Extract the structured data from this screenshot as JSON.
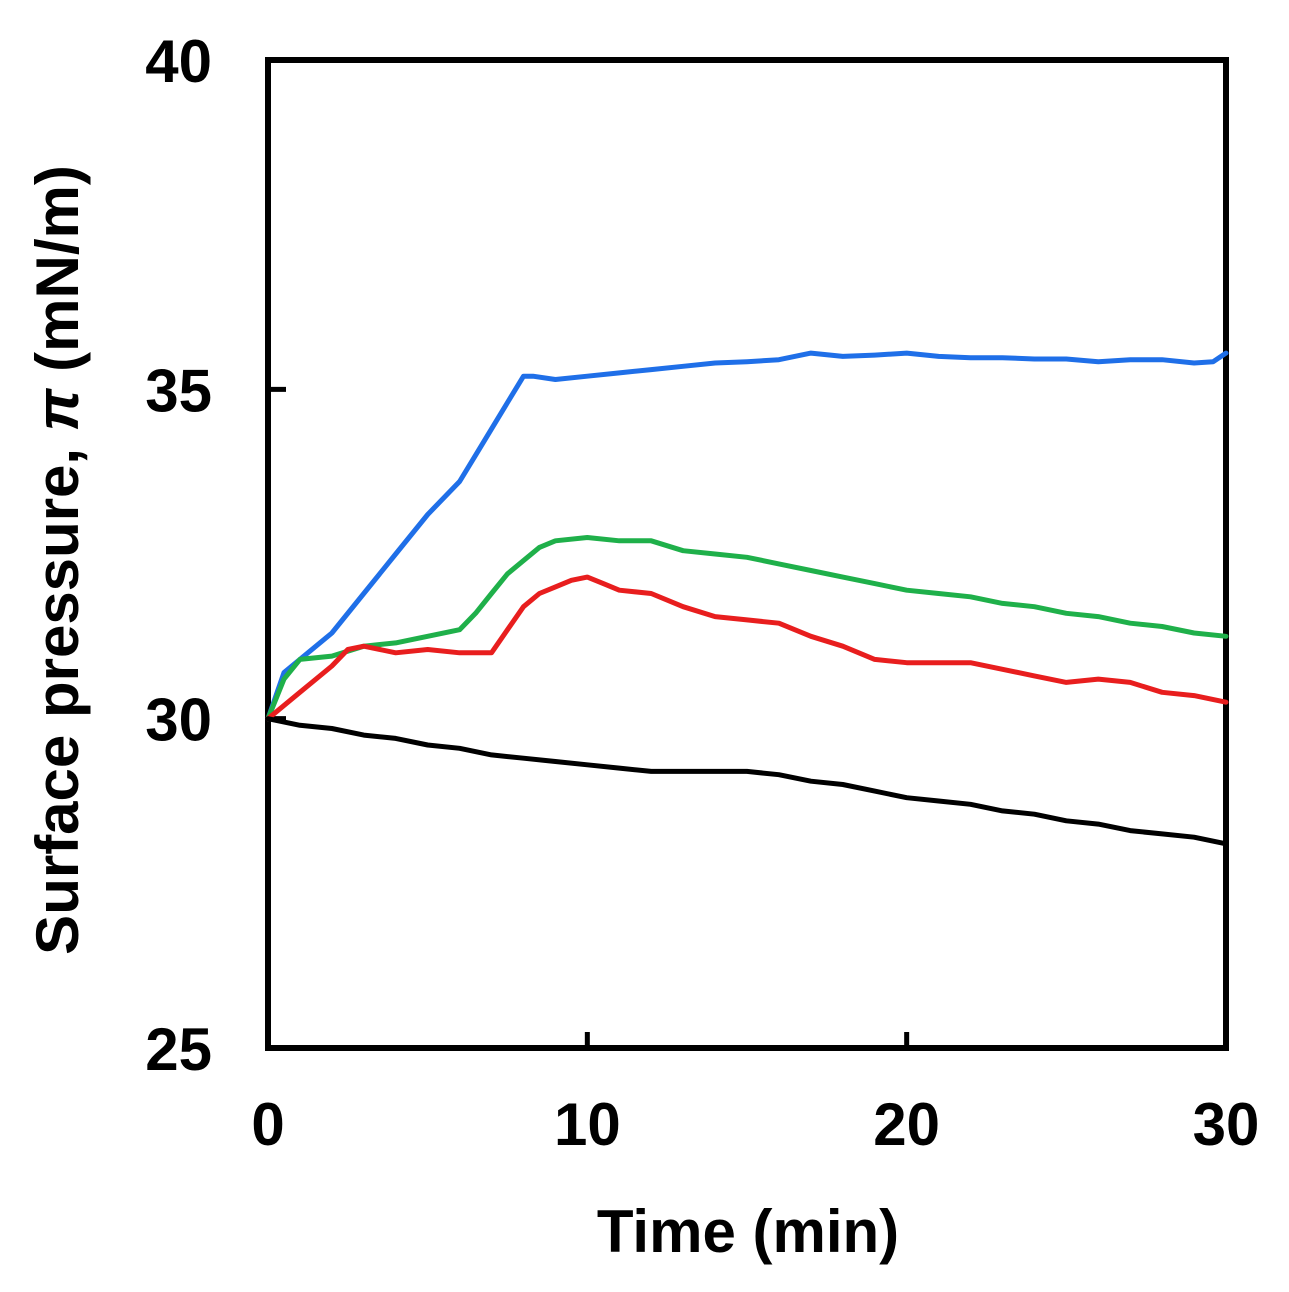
{
  "chart_data": {
    "type": "line",
    "title": "",
    "xlabel": "Time (min)",
    "ylabel_parts": [
      "Surface pressure, ",
      "π",
      " (mN/m)"
    ],
    "xlim": [
      0,
      30
    ],
    "ylim": [
      25,
      40
    ],
    "xticks": [
      0,
      10,
      20,
      30
    ],
    "yticks": [
      25,
      30,
      35,
      40
    ],
    "xtick_labels": [
      "0",
      "10",
      "20",
      "30"
    ],
    "ytick_labels": [
      "25",
      "30",
      "35",
      "40"
    ],
    "grid": false,
    "legend": "none",
    "series": [
      {
        "name": "blue",
        "color": "#1f6fe8",
        "x": [
          0,
          0.5,
          1,
          2,
          3,
          4,
          5,
          6,
          6.5,
          7,
          7.5,
          8,
          8.3,
          9,
          10,
          11,
          12,
          13,
          14,
          15,
          16,
          17,
          18,
          19,
          20,
          21,
          22,
          23,
          24,
          25,
          26,
          27,
          28,
          29,
          29.6,
          30
        ],
        "values": [
          30,
          30.7,
          30.9,
          31.3,
          31.9,
          32.5,
          33.1,
          33.6,
          34.0,
          34.4,
          34.8,
          35.2,
          35.2,
          35.15,
          35.2,
          35.25,
          35.3,
          35.35,
          35.4,
          35.42,
          35.45,
          35.55,
          35.5,
          35.52,
          35.55,
          35.5,
          35.48,
          35.48,
          35.46,
          35.46,
          35.42,
          35.45,
          35.45,
          35.4,
          35.42,
          35.55
        ]
      },
      {
        "name": "green",
        "color": "#1fb04a",
        "x": [
          0,
          0.5,
          1,
          2,
          3,
          4,
          5,
          6,
          6.5,
          7,
          7.5,
          8,
          8.5,
          9,
          10,
          11,
          12,
          13,
          14,
          15,
          16,
          17,
          18,
          19,
          20,
          21,
          22,
          23,
          24,
          25,
          26,
          27,
          28,
          29,
          30
        ],
        "values": [
          30,
          30.6,
          30.9,
          30.95,
          31.1,
          31.15,
          31.25,
          31.35,
          31.6,
          31.9,
          32.2,
          32.4,
          32.6,
          32.7,
          32.75,
          32.7,
          32.7,
          32.55,
          32.5,
          32.45,
          32.35,
          32.25,
          32.15,
          32.05,
          31.95,
          31.9,
          31.85,
          31.75,
          31.7,
          31.6,
          31.55,
          31.45,
          31.4,
          31.3,
          31.25
        ]
      },
      {
        "name": "red",
        "color": "#e81e1e",
        "x": [
          0,
          1,
          2,
          2.5,
          3,
          4,
          5,
          6,
          7,
          7.5,
          8,
          8.5,
          9,
          9.5,
          10,
          10.5,
          11,
          12,
          13,
          14,
          15,
          16,
          17,
          18,
          19,
          20,
          21,
          22,
          23,
          24,
          25,
          26,
          27,
          28,
          29,
          30
        ],
        "values": [
          30,
          30.4,
          30.8,
          31.05,
          31.1,
          31.0,
          31.05,
          31.0,
          31.0,
          31.35,
          31.7,
          31.9,
          32.0,
          32.1,
          32.15,
          32.05,
          31.95,
          31.9,
          31.7,
          31.55,
          31.5,
          31.45,
          31.25,
          31.1,
          30.9,
          30.85,
          30.85,
          30.85,
          30.75,
          30.65,
          30.55,
          30.6,
          30.55,
          30.4,
          30.35,
          30.25
        ]
      },
      {
        "name": "black",
        "color": "#000000",
        "x": [
          0,
          1,
          2,
          3,
          4,
          5,
          6,
          7,
          8,
          9,
          10,
          11,
          12,
          13,
          14,
          15,
          16,
          17,
          18,
          19,
          20,
          21,
          22,
          23,
          24,
          25,
          26,
          27,
          28,
          29,
          30
        ],
        "values": [
          30,
          29.9,
          29.85,
          29.75,
          29.7,
          29.6,
          29.55,
          29.45,
          29.4,
          29.35,
          29.3,
          29.25,
          29.2,
          29.2,
          29.2,
          29.2,
          29.15,
          29.05,
          29.0,
          28.9,
          28.8,
          28.75,
          28.7,
          28.6,
          28.55,
          28.45,
          28.4,
          28.3,
          28.25,
          28.2,
          28.1
        ]
      }
    ]
  }
}
